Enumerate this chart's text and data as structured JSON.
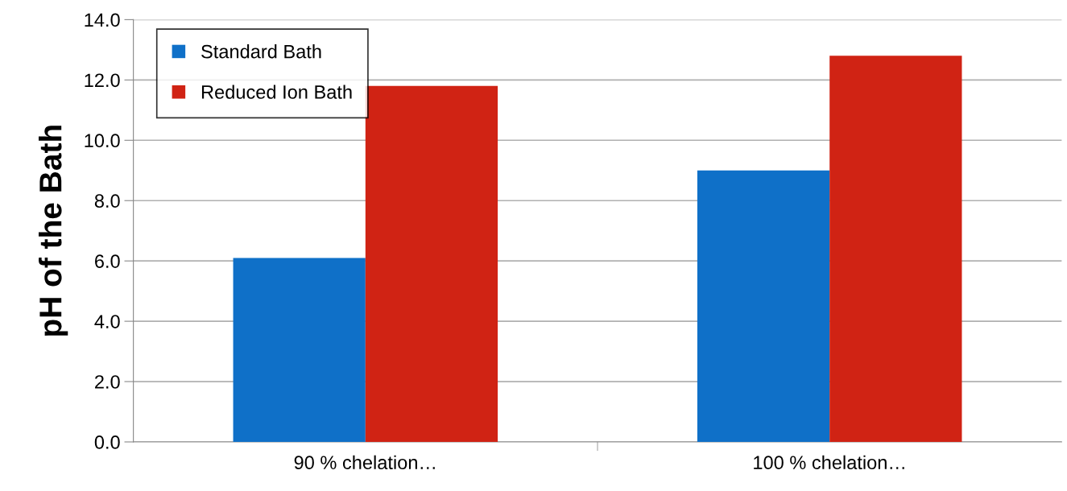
{
  "chart_data": {
    "type": "bar",
    "ylabel": "pH of the Bath",
    "categories": [
      "90 % chelation…",
      "100 % chelation…"
    ],
    "series": [
      {
        "name": "Standard Bath",
        "color": "#0f70c8",
        "values": [
          6.1,
          9.0
        ]
      },
      {
        "name": "Reduced Ion Bath",
        "color": "#d02314",
        "values": [
          11.8,
          12.8
        ]
      }
    ],
    "ylim": [
      0,
      14
    ],
    "yticks": [
      {
        "value": 0,
        "label": "0.0"
      },
      {
        "value": 2,
        "label": "2.0"
      },
      {
        "value": 4,
        "label": "4.0"
      },
      {
        "value": 6,
        "label": "6.0"
      },
      {
        "value": 8,
        "label": "8.0"
      },
      {
        "value": 10,
        "label": "10.0"
      },
      {
        "value": 12,
        "label": "12.0"
      },
      {
        "value": 14,
        "label": "14.0"
      }
    ],
    "grid": "y",
    "legend": "top left"
  }
}
